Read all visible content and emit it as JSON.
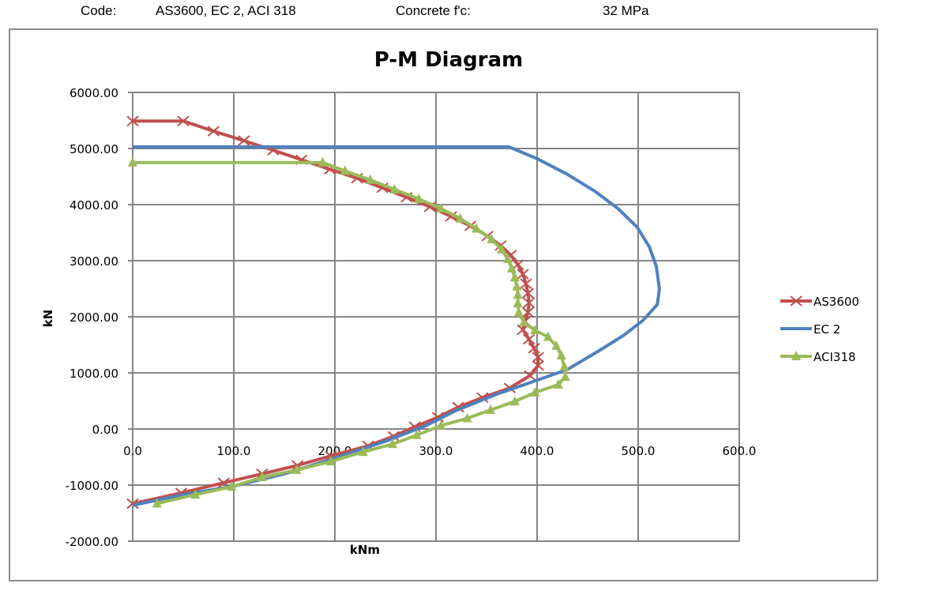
{
  "header": {
    "code_label": "Code:",
    "code_value": "AS3600, EC 2, ACI 318",
    "concrete_label": "Concrete f'c:",
    "concrete_value": "32 MPa"
  },
  "colors": {
    "AS3600": "#c0504d",
    "EC 2": "#4f81bd",
    "ACI318": "#9bbb59",
    "grid": "#868686"
  },
  "chart_data": {
    "type": "line",
    "title": "P-M Diagram",
    "xlabel": "kNm",
    "ylabel": "kN",
    "xlim": [
      0,
      600
    ],
    "ylim": [
      -2000,
      6000
    ],
    "x_ticks": [
      "0.0",
      "100.0",
      "200.0",
      "300.0",
      "400.0",
      "500.0",
      "600.0"
    ],
    "y_ticks": [
      "6000.00",
      "5000.00",
      "4000.00",
      "3000.00",
      "2000.00",
      "1000.00",
      "0.00",
      "-1000.00",
      "-2000.00"
    ],
    "grid": true,
    "legend_position": "right",
    "legend": [
      "AS3600",
      "EC 2",
      "ACI318"
    ],
    "series": [
      {
        "name": "AS3600",
        "marker": "x",
        "points": [
          [
            0,
            5490
          ],
          [
            50,
            5490
          ],
          [
            80,
            5310
          ],
          [
            110,
            5140
          ],
          [
            139,
            4970
          ],
          [
            167,
            4800
          ],
          [
            195,
            4630
          ],
          [
            222,
            4470
          ],
          [
            247,
            4300
          ],
          [
            271,
            4130
          ],
          [
            294,
            3960
          ],
          [
            315,
            3790
          ],
          [
            334,
            3620
          ],
          [
            351,
            3440
          ],
          [
            364,
            3270
          ],
          [
            374,
            3100
          ],
          [
            381,
            2930
          ],
          [
            386,
            2760
          ],
          [
            389,
            2590
          ],
          [
            391,
            2420
          ],
          [
            392,
            2250
          ],
          [
            391,
            2080
          ],
          [
            388,
            1920
          ],
          [
            386,
            1770
          ],
          [
            392,
            1600
          ],
          [
            397,
            1440
          ],
          [
            401,
            1280
          ],
          [
            401,
            1130
          ],
          [
            393,
            950
          ],
          [
            373,
            730
          ],
          [
            346,
            560
          ],
          [
            322,
            390
          ],
          [
            302,
            210
          ],
          [
            279,
            40
          ],
          [
            258,
            -130
          ],
          [
            233,
            -300
          ],
          [
            196,
            -480
          ],
          [
            163,
            -650
          ],
          [
            128,
            -800
          ],
          [
            90,
            -960
          ],
          [
            48,
            -1140
          ],
          [
            0,
            -1330
          ]
        ]
      },
      {
        "name": "EC 2",
        "marker": "none",
        "points": [
          [
            0,
            5030
          ],
          [
            372,
            5030
          ],
          [
            400,
            4820
          ],
          [
            430,
            4540
          ],
          [
            458,
            4230
          ],
          [
            480,
            3930
          ],
          [
            499,
            3600
          ],
          [
            511,
            3250
          ],
          [
            518,
            2900
          ],
          [
            521,
            2500
          ],
          [
            519,
            2220
          ],
          [
            505,
            1940
          ],
          [
            485,
            1660
          ],
          [
            460,
            1380
          ],
          [
            430,
            1060
          ],
          [
            400,
            870
          ],
          [
            360,
            620
          ],
          [
            320,
            330
          ],
          [
            290,
            60
          ],
          [
            250,
            -220
          ],
          [
            200,
            -520
          ],
          [
            150,
            -800
          ],
          [
            100,
            -1020
          ],
          [
            50,
            -1170
          ],
          [
            0,
            -1360
          ]
        ]
      },
      {
        "name": "ACI318",
        "marker": "triangle",
        "points": [
          [
            0,
            4750
          ],
          [
            188,
            4750
          ],
          [
            210,
            4600
          ],
          [
            235,
            4440
          ],
          [
            259,
            4270
          ],
          [
            283,
            4100
          ],
          [
            305,
            3930
          ],
          [
            324,
            3750
          ],
          [
            340,
            3570
          ],
          [
            355,
            3380
          ],
          [
            365,
            3200
          ],
          [
            371,
            3030
          ],
          [
            375,
            2860
          ],
          [
            378,
            2700
          ],
          [
            380,
            2540
          ],
          [
            381,
            2390
          ],
          [
            381,
            2240
          ],
          [
            382,
            2080
          ],
          [
            387,
            1900
          ],
          [
            398,
            1760
          ],
          [
            411,
            1640
          ],
          [
            419,
            1480
          ],
          [
            424,
            1310
          ],
          [
            427,
            1110
          ],
          [
            428,
            930
          ],
          [
            421,
            790
          ],
          [
            398,
            650
          ],
          [
            378,
            490
          ],
          [
            354,
            340
          ],
          [
            331,
            190
          ],
          [
            305,
            60
          ],
          [
            281,
            -110
          ],
          [
            257,
            -270
          ],
          [
            228,
            -410
          ],
          [
            196,
            -580
          ],
          [
            162,
            -730
          ],
          [
            128,
            -860
          ],
          [
            98,
            -1030
          ],
          [
            62,
            -1170
          ],
          [
            24,
            -1330
          ]
        ]
      }
    ]
  }
}
